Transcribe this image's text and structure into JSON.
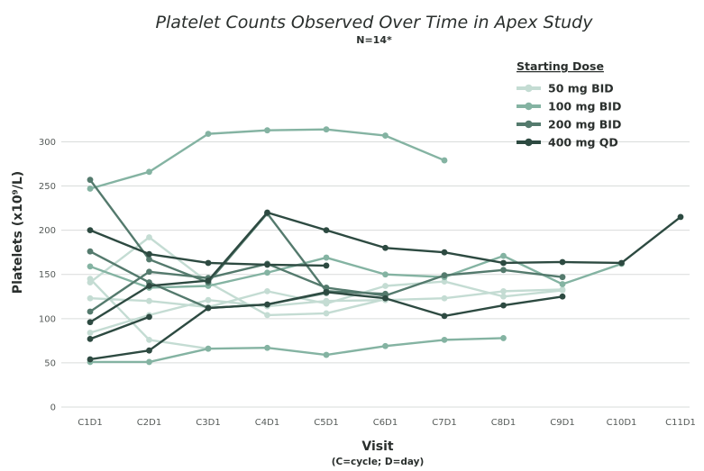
{
  "chart_data": {
    "type": "line",
    "title": "Platelet Counts Observed Over Time in Apex Study",
    "subtitle": "N=14*",
    "xlabel": "Visit",
    "xlabel_sub": "(C=cycle; D=day)",
    "ylabel": "Platelets (x10⁹/L)",
    "ylim": [
      0,
      330
    ],
    "yticks": [
      0,
      50,
      100,
      150,
      200,
      250,
      300
    ],
    "categories": [
      "C1D1",
      "C2D1",
      "C3D1",
      "C4D1",
      "C5D1",
      "C6D1",
      "C7D1",
      "C8D1",
      "C9D1",
      "C10D1",
      "C11D1"
    ],
    "grid": true,
    "legend": {
      "title": "Starting Dose",
      "position": "top-right",
      "entries": [
        {
          "group": "50",
          "label": "50 mg BID",
          "color": "#c4dcd3"
        },
        {
          "group": "100",
          "label": "100 mg BID",
          "color": "#84b3a2"
        },
        {
          "group": "200",
          "label": "200 mg BID",
          "color": "#547a6d"
        },
        {
          "group": "400",
          "label": "400 mg QD",
          "color": "#2d4a41"
        }
      ]
    },
    "series": [
      {
        "group": "50",
        "values": [
          145,
          76,
          66,
          null,
          null,
          null,
          null,
          null,
          null,
          null,
          null
        ]
      },
      {
        "group": "50",
        "values": [
          141,
          192,
          141,
          104,
          106,
          122,
          null,
          null,
          null,
          null,
          null
        ]
      },
      {
        "group": "50",
        "values": [
          123,
          120,
          113,
          131,
          117,
          137,
          142,
          125,
          132,
          null,
          null
        ]
      },
      {
        "group": "50",
        "values": [
          84,
          104,
          121,
          114,
          120,
          121,
          123,
          131,
          133,
          null,
          null
        ]
      },
      {
        "group": "100",
        "values": [
          247,
          266,
          309,
          313,
          314,
          307,
          279,
          null,
          null,
          null,
          null
        ]
      },
      {
        "group": "100",
        "values": [
          159,
          135,
          137,
          152,
          169,
          150,
          147,
          171,
          139,
          162,
          null
        ]
      },
      {
        "group": "100",
        "values": [
          51,
          51,
          66,
          67,
          59,
          69,
          76,
          78,
          null,
          null,
          null
        ]
      },
      {
        "group": "200",
        "values": [
          257,
          167,
          141,
          219,
          131,
          128,
          null,
          null,
          null,
          null,
          null
        ]
      },
      {
        "group": "200",
        "values": [
          108,
          153,
          146,
          162,
          135,
          126,
          149,
          155,
          147,
          null,
          null
        ]
      },
      {
        "group": "200",
        "values": [
          176,
          141,
          112,
          116,
          129,
          null,
          null,
          null,
          null,
          null,
          null
        ]
      },
      {
        "group": "400",
        "values": [
          200,
          173,
          163,
          161,
          160,
          null,
          null,
          null,
          null,
          null,
          null
        ]
      },
      {
        "group": "400",
        "values": [
          96,
          137,
          143,
          220,
          200,
          180,
          175,
          163,
          164,
          163,
          215
        ]
      },
      {
        "group": "400",
        "values": [
          77,
          102,
          null,
          null,
          null,
          null,
          null,
          null,
          null,
          null,
          null
        ]
      },
      {
        "group": "400",
        "values": [
          54,
          64,
          112,
          116,
          130,
          123,
          103,
          115,
          125,
          null,
          null
        ]
      }
    ]
  }
}
